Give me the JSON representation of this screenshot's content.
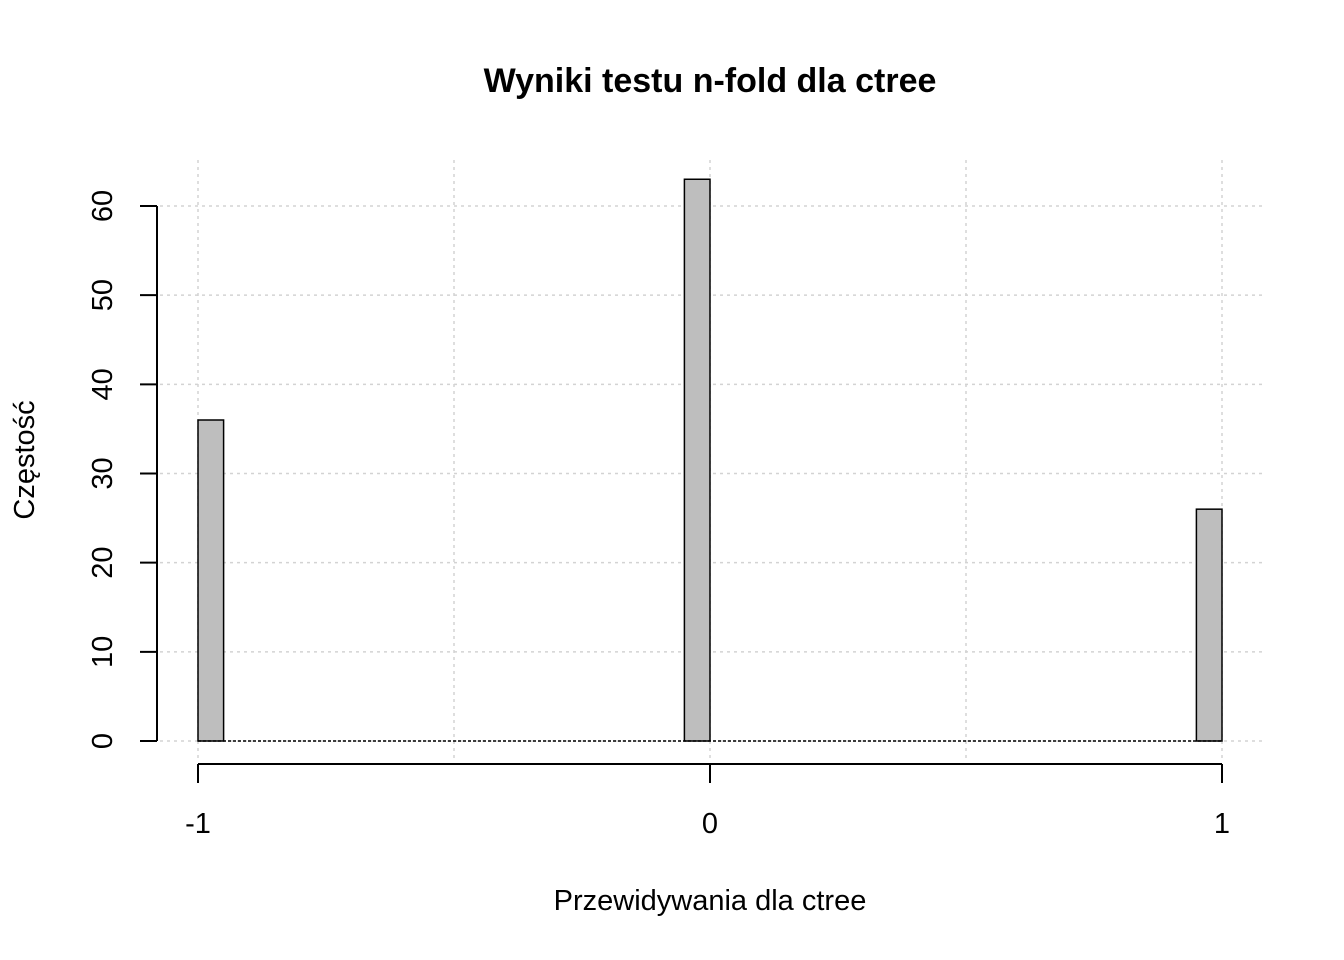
{
  "chart_data": {
    "type": "bar",
    "title": "Wyniki testu n-fold dla ctree",
    "xlabel": "Przewidywania dla ctree",
    "ylabel": "Częstość",
    "categories": [
      "-1",
      "0",
      "1"
    ],
    "x_values": [
      -1,
      0,
      1
    ],
    "values": [
      36,
      63,
      26
    ],
    "x_ticks": [
      "-1",
      "0",
      "1"
    ],
    "y_ticks": [
      "0",
      "10",
      "20",
      "30",
      "40",
      "50",
      "60"
    ],
    "xlim": [
      -1,
      1
    ],
    "ylim": [
      0,
      60
    ],
    "grid": true,
    "bar_color": "#bebebe"
  }
}
